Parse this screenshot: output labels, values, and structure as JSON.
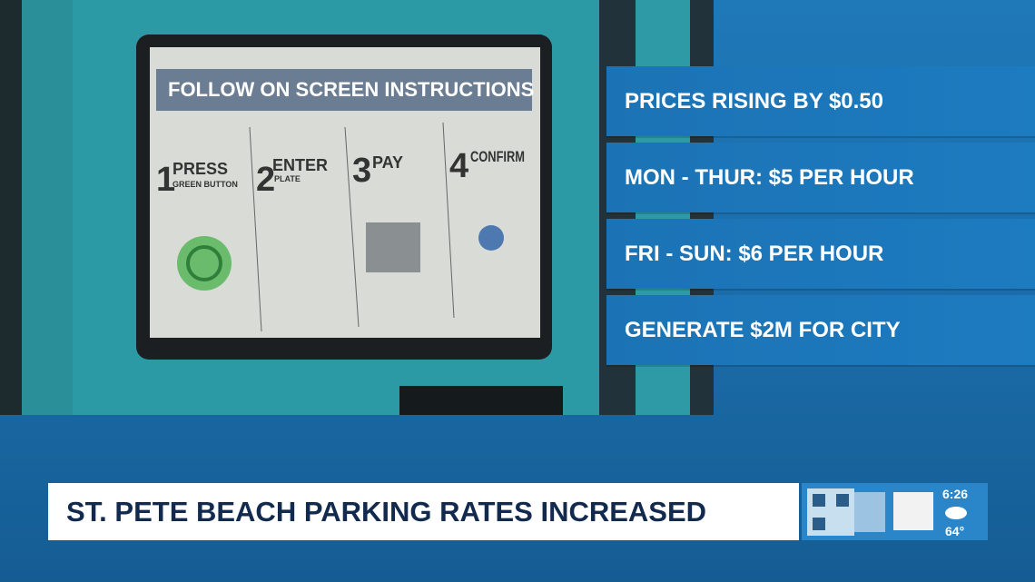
{
  "photo": {
    "screen_title": "FOLLOW ON SCREEN INSTRUCTIONS",
    "steps": [
      {
        "number": "1",
        "label": "PRESS",
        "sublabel": "GREEN BUTTON"
      },
      {
        "number": "2",
        "label": "ENTER",
        "sublabel": "PLATE"
      },
      {
        "number": "3",
        "label": "PAY"
      },
      {
        "number": "4",
        "label": "CONFIRM"
      }
    ]
  },
  "bullets": [
    "PRICES RISING BY $0.50",
    "MON - THUR: $5 PER HOUR",
    "FRI - SUN: $6 PER HOUR",
    "GENERATE $2M FOR CITY"
  ],
  "headline": "ST. PETE BEACH PARKING RATES INCREASED",
  "bug": {
    "time": "6:26",
    "temperature": "64°"
  }
}
